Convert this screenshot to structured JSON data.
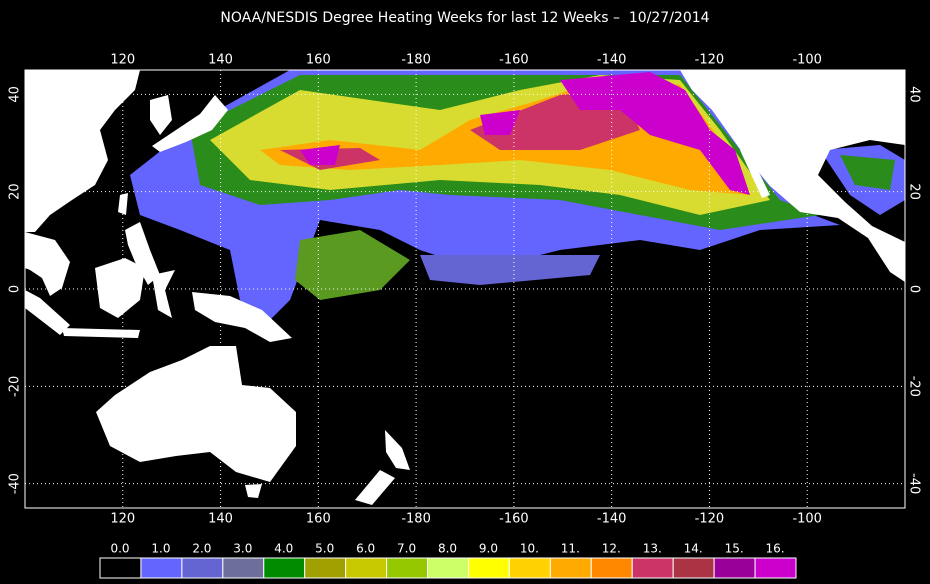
{
  "map": {
    "title": "NOAA/NESDIS Degree Heating Weeks for last 12 Weeks –  10/27/2014",
    "xlim": [
      100,
      280
    ],
    "ylim": [
      -45,
      45
    ],
    "xticks": [
      120,
      140,
      160,
      -180,
      -160,
      -140,
      -120,
      -100
    ],
    "yticks": [
      40,
      20,
      0,
      -20,
      -40
    ],
    "grid": true,
    "colorbar": {
      "labels": [
        "0.0",
        "1.0",
        "2.0",
        "3.0",
        "4.0",
        "5.0",
        "6.0",
        "7.0",
        "8.0",
        "9.0",
        "10.",
        "11.",
        "12.",
        "13.",
        "14.",
        "15.",
        "16."
      ],
      "colors": [
        "#000000",
        "#6464ff",
        "#6464d2",
        "#6e6e9a",
        "#008c00",
        "#a0a000",
        "#c8c800",
        "#96c800",
        "#ccff66",
        "#ffff00",
        "#ffd200",
        "#ffaa00",
        "#ff8800",
        "#cc3366",
        "#aa3344",
        "#990099",
        "#cc00cc"
      ]
    }
  }
}
